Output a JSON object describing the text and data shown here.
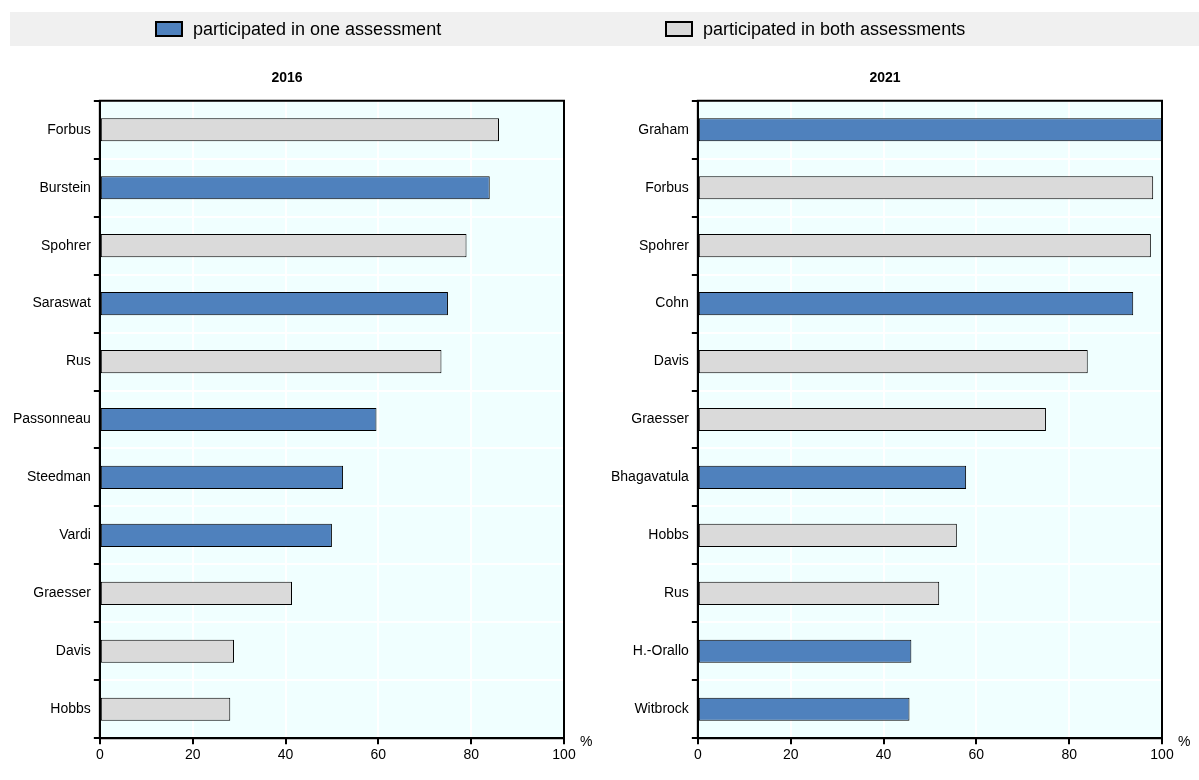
{
  "chart_data": [
    {
      "type": "bar",
      "orientation": "horizontal",
      "title": "2016",
      "xlabel": "%",
      "legend": "top",
      "grid": true,
      "categories": [
        "Forbus",
        "Burstein",
        "Spohrer",
        "Saraswat",
        "Rus",
        "Passonneau",
        "Steedman",
        "Vardi",
        "Graesser",
        "Davis",
        "Hobbs"
      ],
      "series": [
        {
          "name": "participated in one assessment",
          "color": "#4f81bd",
          "values": [
            null,
            84,
            null,
            75,
            null,
            59.6,
            52.4,
            50,
            null,
            null,
            null
          ]
        },
        {
          "name": "participated in both assessments",
          "color": "#dadada",
          "values": [
            86,
            null,
            79,
            null,
            73.6,
            null,
            null,
            null,
            41.4,
            28.9,
            28.1
          ]
        }
      ],
      "xlim": [
        0,
        100
      ],
      "xticks": [
        0,
        20,
        40,
        60,
        80,
        100
      ]
    },
    {
      "type": "bar",
      "orientation": "horizontal",
      "title": "2021",
      "xlabel": "%",
      "grid": true,
      "categories": [
        "Graham",
        "Forbus",
        "Spohrer",
        "Cohn",
        "Davis",
        "Graesser",
        "Bhagavatula",
        "Hobbs",
        "Rus",
        "H.-Orallo",
        "Witbrock"
      ],
      "series": [
        {
          "color": "#4f81bd",
          "values": [
            100,
            null,
            null,
            93.8,
            null,
            null,
            57.8,
            null,
            null,
            46,
            45.6
          ]
        },
        {
          "color": "#dadada",
          "values": [
            null,
            98.1,
            97.6,
            null,
            84,
            75,
            null,
            55.8,
            52,
            null,
            null
          ]
        }
      ],
      "xlim": [
        0,
        100
      ],
      "xticks": [
        0,
        20,
        40,
        60,
        80,
        100
      ]
    }
  ]
}
